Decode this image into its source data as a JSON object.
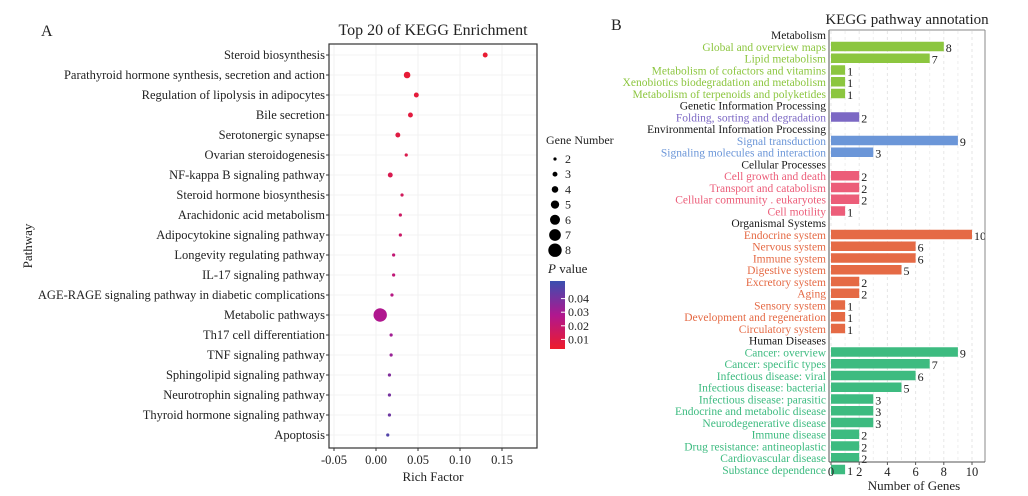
{
  "chart_data": [
    {
      "type": "scatter",
      "panel_label": "A",
      "title": "Top 20 of KEGG Enrichment",
      "xlabel": "Rich Factor",
      "ylabel": "Pathway",
      "xlim": [
        -0.06,
        0.19
      ],
      "xticks": [
        -0.05,
        0.0,
        0.05,
        0.1,
        0.15
      ],
      "xtick_labels": [
        "-0.05",
        "0.00",
        "0.05",
        "0.10",
        "0.15"
      ],
      "grid": true,
      "categories": [
        "Steroid biosynthesis",
        "Parathyroid hormone synthesis, secretion and action",
        "Regulation of lipolysis in adipocytes",
        "Bile secretion",
        "Serotonergic synapse",
        "Ovarian steroidogenesis",
        "NF-kappa B signaling pathway",
        "Steroid hormone biosynthesis",
        "Arachidonic acid metabolism",
        "Adipocytokine signaling pathway",
        "Longevity regulating pathway",
        "IL-17 signaling pathway",
        "AGE-RAGE signaling pathway in diabetic complications",
        "Metabolic pathways",
        "Th17 cell differentiation",
        "TNF signaling pathway",
        "Sphingolipid signaling pathway",
        "Neurotrophin signaling pathway",
        "Thyroid hormone signaling pathway",
        "Apoptosis"
      ],
      "rich_factor": [
        0.13,
        0.037,
        0.048,
        0.041,
        0.026,
        0.036,
        0.017,
        0.031,
        0.029,
        0.029,
        0.021,
        0.021,
        0.019,
        0.005,
        0.018,
        0.018,
        0.016,
        0.016,
        0.016,
        0.014
      ],
      "gene_number": [
        3,
        4,
        3,
        3,
        3,
        2,
        3,
        2,
        2,
        2,
        2,
        2,
        2,
        8,
        2,
        2,
        2,
        2,
        2,
        2
      ],
      "p_value": [
        0.002,
        0.003,
        0.004,
        0.005,
        0.006,
        0.008,
        0.009,
        0.012,
        0.014,
        0.015,
        0.018,
        0.019,
        0.022,
        0.025,
        0.028,
        0.03,
        0.035,
        0.037,
        0.039,
        0.045
      ],
      "size_legend": {
        "title": "Gene Number",
        "values": [
          2,
          3,
          4,
          5,
          6,
          7,
          8
        ],
        "labels": [
          "2",
          "3",
          "4",
          "5",
          "6",
          "7",
          "8"
        ]
      },
      "color_legend": {
        "title_italic": "P",
        "title_rest": " value",
        "range": [
          0.0,
          0.05
        ],
        "ticks": [
          0.04,
          0.03,
          0.02,
          0.01
        ],
        "tick_labels": [
          "0.04",
          "0.03",
          "0.02",
          "0.01"
        ],
        "low_color": "#ee1c2b",
        "mid_color": "#b0178f",
        "high_color": "#3a4fb0"
      }
    },
    {
      "type": "bar",
      "orientation": "horizontal",
      "panel_label": "B",
      "title": "KEGG pathway annotation",
      "xlabel": "Number of Genes",
      "xlim": [
        0,
        11
      ],
      "xticks": [
        0,
        2,
        4,
        6,
        8,
        10
      ],
      "xtick_labels": [
        "0",
        "2",
        "4",
        "6",
        "8",
        "10"
      ],
      "grid": true,
      "groups": [
        {
          "name": "Metabolism",
          "color": "#8cc63f",
          "categories": [
            "Global and overview maps",
            "Lipid metabolism",
            "Metabolism of cofactors and vitamins",
            "Xenobiotics biodegradation and metabolism",
            "Metabolism of terpenoids and polyketides"
          ],
          "values": [
            8,
            7,
            1,
            1,
            1
          ]
        },
        {
          "name": "Genetic Information Processing",
          "color": "#7c68c4",
          "categories": [
            "Folding, sorting and degradation"
          ],
          "values": [
            2
          ]
        },
        {
          "name": "Environmental Information Processing",
          "color": "#6b96d8",
          "categories": [
            "Signal transduction",
            "Signaling molecules and interaction"
          ],
          "values": [
            9,
            3
          ]
        },
        {
          "name": "Cellular Processes",
          "color": "#ec5d79",
          "categories": [
            "Cell growth and death",
            "Transport and catabolism",
            "Cellular community . eukaryotes",
            "Cell motility"
          ],
          "values": [
            2,
            2,
            2,
            1
          ]
        },
        {
          "name": "Organismal Systems",
          "color": "#e56a45",
          "categories": [
            "Endocrine system",
            "Nervous system",
            "Immune system",
            "Digestive system",
            "Excretory system",
            "Aging",
            "Sensory system",
            "Development and regeneration",
            "Circulatory system"
          ],
          "values": [
            10,
            6,
            6,
            5,
            2,
            2,
            1,
            1,
            1
          ]
        },
        {
          "name": "Human Diseases",
          "color": "#3dbb80",
          "categories": [
            "Cancer: overview",
            "Cancer: specific types",
            "Infectious disease: viral",
            "Infectious disease: bacterial",
            "Infectious disease: parasitic",
            "Endocrine and metabolic disease",
            "Neurodegenerative disease",
            "Immune disease",
            "Drug resistance: antineoplastic",
            "Cardiovascular disease",
            "Substance dependence"
          ],
          "values": [
            9,
            7,
            6,
            5,
            3,
            3,
            3,
            2,
            2,
            2,
            1
          ]
        }
      ]
    }
  ]
}
